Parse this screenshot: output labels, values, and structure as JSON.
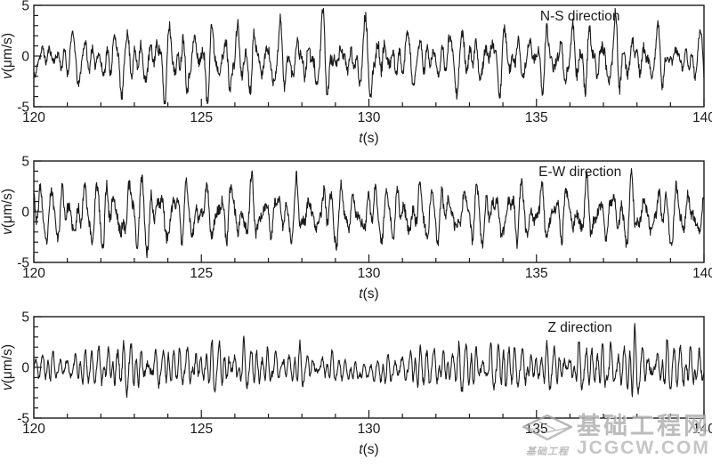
{
  "page": {
    "background": "#ffffff",
    "axis_color": "#1a1a1a"
  },
  "watermark": {
    "site_name": "基础工程网",
    "site_url": "JCGCW.COM",
    "logo_caption": "基础工程",
    "color": "#9e9e9e"
  },
  "chart_data": [
    {
      "type": "line",
      "title": "N-S direction",
      "xlabel_var": "t",
      "xlabel_unit": "(s)",
      "ylabel_var": "v",
      "ylabel_unit": "(μm/s)",
      "xlim": [
        120,
        140
      ],
      "ylim": [
        -5,
        5
      ],
      "x_major_ticks": [
        120,
        125,
        130,
        135,
        140
      ],
      "x_minor_step": 1,
      "y_major_ticks": [
        -5,
        0,
        5
      ],
      "y_minor_step": 1,
      "grid": false,
      "line_color": "#1a1a1a",
      "waveform": {
        "seed": 11,
        "points": 1600,
        "freqs": [
          1.6,
          2.4,
          3.1,
          3.9,
          4.8,
          6.2
        ],
        "amps": [
          0.35,
          0.5,
          0.55,
          0.4,
          0.3,
          0.2
        ],
        "noise": 0.25,
        "envelope": [
          [
            120,
            1.3
          ],
          [
            121.5,
            1.7
          ],
          [
            123,
            2.2
          ],
          [
            124.5,
            2.6
          ],
          [
            126,
            2.4
          ],
          [
            127.5,
            2.2
          ],
          [
            128.5,
            2.5
          ],
          [
            129.5,
            2.0
          ],
          [
            130.3,
            2.8
          ],
          [
            131,
            1.7
          ],
          [
            132,
            1.9
          ],
          [
            133.5,
            2.1
          ],
          [
            135,
            2.0
          ],
          [
            136.5,
            2.4
          ],
          [
            137.5,
            2.5
          ],
          [
            138.5,
            1.8
          ],
          [
            140,
            1.6
          ]
        ],
        "offset": [
          [
            120,
            0.0
          ],
          [
            122,
            -0.4
          ],
          [
            130,
            -0.4
          ],
          [
            134,
            -0.2
          ],
          [
            140,
            -0.3
          ]
        ]
      }
    },
    {
      "type": "line",
      "title": "E-W direction",
      "xlabel_var": "t",
      "xlabel_unit": "(s)",
      "ylabel_var": "v",
      "ylabel_unit": "(μm/s)",
      "xlim": [
        120,
        140
      ],
      "ylim": [
        -5,
        5
      ],
      "x_major_ticks": [
        120,
        125,
        130,
        135,
        140
      ],
      "x_minor_step": 1,
      "y_major_ticks": [
        -5,
        0,
        5
      ],
      "y_minor_step": 1,
      "grid": false,
      "line_color": "#1a1a1a",
      "waveform": {
        "seed": 23,
        "points": 1600,
        "freqs": [
          1.4,
          2.2,
          3.0,
          3.7,
          4.6,
          6.0
        ],
        "amps": [
          0.3,
          0.5,
          0.55,
          0.45,
          0.3,
          0.22
        ],
        "noise": 0.25,
        "envelope": [
          [
            120,
            2.0
          ],
          [
            121.5,
            2.3
          ],
          [
            123,
            2.8
          ],
          [
            123.6,
            2.6
          ],
          [
            125,
            1.9
          ],
          [
            126,
            2.3
          ],
          [
            127,
            1.9
          ],
          [
            128.5,
            2.1
          ],
          [
            130,
            2.0
          ],
          [
            131.5,
            2.2
          ],
          [
            133,
            2.0
          ],
          [
            134.5,
            2.2
          ],
          [
            136,
            2.0
          ],
          [
            137.5,
            2.2
          ],
          [
            139,
            2.0
          ],
          [
            140,
            2.1
          ]
        ],
        "offset": [
          [
            120,
            -0.2
          ],
          [
            140,
            -0.2
          ]
        ]
      }
    },
    {
      "type": "line",
      "title": "Z direction",
      "xlabel_var": "t",
      "xlabel_unit": "(s)",
      "ylabel_var": "v",
      "ylabel_unit": "(μm/s)",
      "xlim": [
        120,
        140
      ],
      "ylim": [
        -5,
        5
      ],
      "x_major_ticks": [
        120,
        125,
        130,
        135,
        140
      ],
      "x_minor_step": 1,
      "y_major_ticks": [
        -5,
        0,
        5
      ],
      "y_minor_step": 1,
      "grid": false,
      "line_color": "#1a1a1a",
      "waveform": {
        "seed": 37,
        "points": 1600,
        "freqs": [
          3.0,
          4.2,
          5.3,
          6.1,
          7.2,
          8.4
        ],
        "amps": [
          0.3,
          0.45,
          0.5,
          0.4,
          0.3,
          0.2
        ],
        "noise": 0.22,
        "envelope": [
          [
            120,
            1.0
          ],
          [
            121.5,
            1.3
          ],
          [
            122.4,
            2.2
          ],
          [
            123.5,
            1.5
          ],
          [
            124.5,
            1.6
          ],
          [
            125.8,
            2.0
          ],
          [
            127,
            1.5
          ],
          [
            128,
            1.4
          ],
          [
            129,
            1.0
          ],
          [
            130,
            0.8
          ],
          [
            130.8,
            1.2
          ],
          [
            131.8,
            1.7
          ],
          [
            133,
            1.9
          ],
          [
            134,
            2.1
          ],
          [
            135,
            1.5
          ],
          [
            136,
            1.7
          ],
          [
            137,
            1.9
          ],
          [
            137.9,
            2.4
          ],
          [
            138.6,
            1.6
          ],
          [
            139.3,
            2.0
          ],
          [
            140,
            1.8
          ]
        ],
        "offset": [
          [
            120,
            0
          ],
          [
            128.8,
            0
          ],
          [
            129.6,
            -0.5
          ],
          [
            130.4,
            -0.4
          ],
          [
            131,
            0
          ],
          [
            140,
            0
          ]
        ]
      }
    }
  ]
}
